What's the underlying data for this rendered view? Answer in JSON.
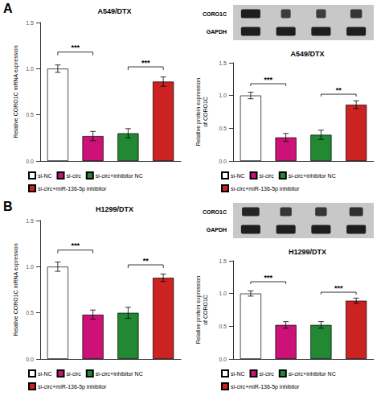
{
  "chart_data": [
    {
      "type": "bar",
      "title": "A549/DTX",
      "ylabel": "Relative CORO1C mRNA expression",
      "categories": [
        null,
        null,
        null,
        null
      ],
      "series": [
        {
          "name": "si-NC",
          "color": "#ffffff",
          "values": [
            1.0,
            null,
            null,
            null
          ],
          "errors": [
            0.04,
            null,
            null,
            null
          ]
        },
        {
          "name": "si-circ",
          "color": "#cc1177",
          "values": [
            null,
            0.27,
            null,
            null
          ],
          "errors": [
            null,
            0.05,
            null,
            null
          ]
        },
        {
          "name": "si-circ+inhibitor NC",
          "color": "#228833",
          "values": [
            null,
            null,
            0.3,
            null
          ],
          "errors": [
            null,
            null,
            0.05,
            null
          ]
        },
        {
          "name": "si-circ+miR-136-5p inhibitor",
          "color": "#cc2222",
          "values": [
            null,
            null,
            null,
            0.86
          ],
          "errors": [
            null,
            null,
            null,
            0.05
          ]
        }
      ],
      "ylim": [
        0,
        1.5
      ],
      "yticks": [
        {
          "value": 0,
          "label": "0.0"
        },
        0.5,
        {
          "value": 1,
          "label": "1.0"
        },
        1.5
      ],
      "annotations": [
        {
          "text": "A"
        },
        {
          "text": "***",
          "from": "si-NC",
          "to": "si-circ",
          "y": 1.18
        },
        {
          "text": "***",
          "from": "si-circ+inhibitor NC",
          "to": "si-circ+miR-136-5p inhibitor",
          "y": 1.02
        }
      ],
      "tick_labels": "y",
      "legend": "bottom",
      "grid": false
    },
    {
      "type": "blot",
      "categories": [
        "CORO1C",
        "GAPDH"
      ],
      "values": [
        [
          1.0,
          0.5,
          0.5,
          0.6
        ],
        [
          1.0,
          1.0,
          1.0,
          1.0
        ]
      ],
      "tick_labels": "y"
    },
    {
      "type": "bar",
      "title": "A549/DTX",
      "ylabel": "Relative protein expression\nof CORO1C",
      "categories": [
        null,
        null,
        null,
        null
      ],
      "series": [
        {
          "name": "si-NC",
          "color": "#ffffff",
          "values": [
            1.0,
            null,
            null,
            null
          ],
          "errors": [
            0.05,
            null,
            null,
            null
          ]
        },
        {
          "name": "si-circ",
          "color": "#cc1177",
          "values": [
            null,
            0.36,
            null,
            null
          ],
          "errors": [
            null,
            0.06,
            null,
            null
          ]
        },
        {
          "name": "si-circ+inhibitor NC",
          "color": "#228833",
          "values": [
            null,
            null,
            0.4,
            null
          ],
          "errors": [
            null,
            null,
            0.07,
            null
          ]
        },
        {
          "name": "si-circ+miR-136-5p inhibitor",
          "color": "#cc2222",
          "values": [
            null,
            null,
            null,
            0.86
          ],
          "errors": [
            null,
            null,
            null,
            0.06
          ]
        }
      ],
      "ylim": [
        0,
        1.5
      ],
      "yticks": [
        {
          "value": 0,
          "label": "0.0"
        },
        0.5,
        {
          "value": 1,
          "label": "1.0"
        },
        1.5
      ],
      "annotations": [
        {
          "text": "***",
          "from": "si-NC",
          "to": "si-circ",
          "y": 1.18
        },
        {
          "text": "**",
          "from": "si-circ+inhibitor NC",
          "to": "si-circ+miR-136-5p inhibitor",
          "y": 1.02
        }
      ],
      "tick_labels": "y",
      "legend": "bottom",
      "grid": false
    },
    {
      "type": "bar",
      "title": "H1299/DTX",
      "ylabel": "Relative CORO1C mRNA expression",
      "categories": [
        null,
        null,
        null,
        null
      ],
      "series": [
        {
          "name": "si-NC",
          "color": "#ffffff",
          "values": [
            1.0,
            null,
            null,
            null
          ],
          "errors": [
            0.05,
            null,
            null,
            null
          ]
        },
        {
          "name": "si-circ",
          "color": "#cc1177",
          "values": [
            null,
            0.48,
            null,
            null
          ],
          "errors": [
            null,
            0.05,
            null,
            null
          ]
        },
        {
          "name": "si-circ+inhibitor NC",
          "color": "#228833",
          "values": [
            null,
            null,
            0.5,
            null
          ],
          "errors": [
            null,
            null,
            0.06,
            null
          ]
        },
        {
          "name": "si-circ+miR-136-5p inhibitor",
          "color": "#cc2222",
          "values": [
            null,
            null,
            null,
            0.88
          ],
          "errors": [
            null,
            null,
            null,
            0.04
          ]
        }
      ],
      "ylim": [
        0,
        1.5
      ],
      "yticks": [
        {
          "value": 0,
          "label": "0.0"
        },
        0.5,
        {
          "value": 1,
          "label": "1.0"
        },
        1.5
      ],
      "annotations": [
        {
          "text": "B"
        },
        {
          "text": "***",
          "from": "si-NC",
          "to": "si-circ",
          "y": 1.18
        },
        {
          "text": "**",
          "from": "si-circ+inhibitor NC",
          "to": "si-circ+miR-136-5p inhibitor",
          "y": 1.02
        }
      ],
      "tick_labels": "y",
      "legend": "bottom",
      "grid": false
    },
    {
      "type": "blot",
      "categories": [
        "CORO1C",
        "GAPDH"
      ],
      "values": [
        [
          0.9,
          0.6,
          0.6,
          0.7
        ],
        [
          1.0,
          1.0,
          1.0,
          1.0
        ]
      ],
      "tick_labels": "y"
    },
    {
      "type": "bar",
      "title": "H1299/DTX",
      "ylabel": "Relative protein expression\nof CORO1C",
      "categories": [
        null,
        null,
        null,
        null
      ],
      "series": [
        {
          "name": "si-NC",
          "color": "#ffffff",
          "values": [
            1.0,
            null,
            null,
            null
          ],
          "errors": [
            0.04,
            null,
            null,
            null
          ]
        },
        {
          "name": "si-circ",
          "color": "#cc1177",
          "values": [
            null,
            0.52,
            null,
            null
          ],
          "errors": [
            null,
            0.05,
            null,
            null
          ]
        },
        {
          "name": "si-circ+inhibitor NC",
          "color": "#228833",
          "values": [
            null,
            null,
            0.52,
            null
          ],
          "errors": [
            null,
            null,
            0.05,
            null
          ]
        },
        {
          "name": "si-circ+miR-136-5p inhibitor",
          "color": "#cc2222",
          "values": [
            null,
            null,
            null,
            0.89
          ],
          "errors": [
            null,
            null,
            null,
            0.04
          ]
        }
      ],
      "ylim": [
        0,
        1.5
      ],
      "yticks": [
        {
          "value": 0,
          "label": "0.0"
        },
        0.5,
        {
          "value": 1,
          "label": "1.0"
        },
        1.5
      ],
      "annotations": [
        {
          "text": "***",
          "from": "si-NC",
          "to": "si-circ",
          "y": 1.18
        },
        {
          "text": "***",
          "from": "si-circ+inhibitor NC",
          "to": "si-circ+miR-136-5p inhibitor",
          "y": 1.02
        }
      ],
      "tick_labels": "y",
      "legend": "bottom",
      "grid": false
    }
  ]
}
